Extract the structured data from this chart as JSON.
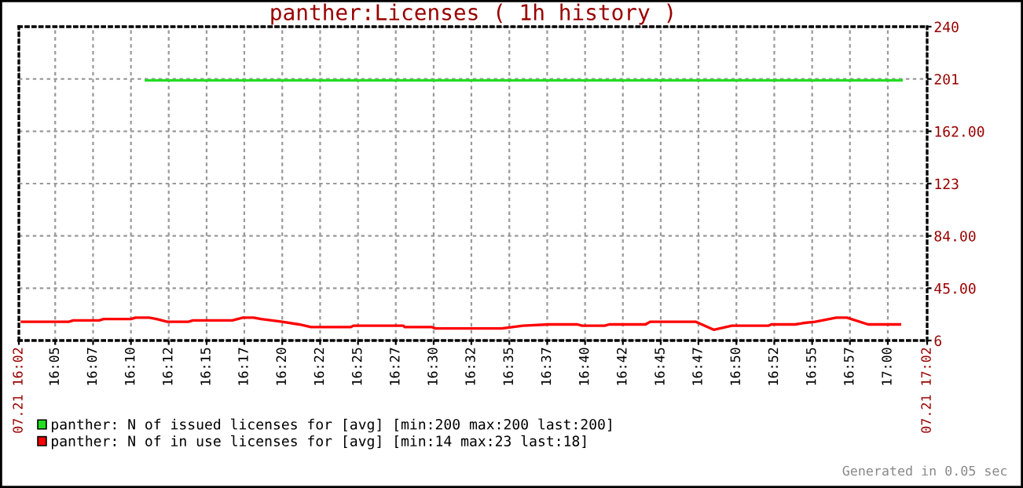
{
  "chart_data": {
    "type": "line",
    "title": "panther:Licenses ( 1h history )",
    "xlim": [
      16.0433,
      17.0433
    ],
    "ylim": [
      6,
      240
    ],
    "xticks": [
      {
        "value": 16.0433,
        "label": "07.21 16:02"
      },
      {
        "value": 16.0833,
        "label": "16:05"
      },
      {
        "value": 16.125,
        "label": "16:07"
      },
      {
        "value": 16.1667,
        "label": "16:10"
      },
      {
        "value": 16.2083,
        "label": "16:12"
      },
      {
        "value": 16.25,
        "label": "16:15"
      },
      {
        "value": 16.2915,
        "label": "16:17"
      },
      {
        "value": 16.3333,
        "label": "16:20"
      },
      {
        "value": 16.375,
        "label": "16:22"
      },
      {
        "value": 16.4167,
        "label": "16:25"
      },
      {
        "value": 16.4583,
        "label": "16:27"
      },
      {
        "value": 16.5,
        "label": "16:30"
      },
      {
        "value": 16.5415,
        "label": "16:32"
      },
      {
        "value": 16.5833,
        "label": "16:35"
      },
      {
        "value": 16.625,
        "label": "16:37"
      },
      {
        "value": 16.6667,
        "label": "16:40"
      },
      {
        "value": 16.7083,
        "label": "16:42"
      },
      {
        "value": 16.75,
        "label": "16:45"
      },
      {
        "value": 16.7915,
        "label": "16:47"
      },
      {
        "value": 16.8333,
        "label": "16:50"
      },
      {
        "value": 16.875,
        "label": "16:52"
      },
      {
        "value": 16.9167,
        "label": "16:55"
      },
      {
        "value": 16.9583,
        "label": "16:57"
      },
      {
        "value": 17.0,
        "label": "17:00"
      },
      {
        "value": 17.0433,
        "label": "07.21 17:02"
      }
    ],
    "yticks": [
      6,
      {
        "value": 45,
        "label": "45.00"
      },
      {
        "value": 84,
        "label": "84.00"
      },
      123,
      {
        "value": 162,
        "label": "162.00"
      },
      201,
      240
    ],
    "grid": true,
    "legend": "bottom",
    "marker": "none",
    "line_style": "solid",
    "series": [
      {
        "name": "panther: N of issued licenses for [avg] [min:200 max:200 last:200]",
        "color": "#22dd22",
        "x": [
          16.1833,
          17.015
        ],
        "values": [
          200,
          200
        ]
      },
      {
        "name": "panther: N of in use licenses for [avg] [min:14 max:23 last:18]",
        "color": "#ff0000",
        "x": [
          16.0467,
          16.0983,
          16.1033,
          16.1317,
          16.1367,
          16.1667,
          16.1717,
          16.1867,
          16.195,
          16.2067,
          16.23,
          16.235,
          16.2783,
          16.29,
          16.3017,
          16.31,
          16.3217,
          16.3333,
          16.3517,
          16.365,
          16.4083,
          16.4117,
          16.4667,
          16.4683,
          16.4983,
          16.5017,
          16.575,
          16.5983,
          16.6267,
          16.6583,
          16.6633,
          16.6883,
          16.6933,
          16.7333,
          16.7383,
          16.7883,
          16.8083,
          16.8283,
          16.8683,
          16.8717,
          16.8983,
          16.9067,
          16.92,
          16.9433,
          16.955,
          16.9783,
          17.0133
        ],
        "values": [
          20,
          20,
          21,
          21,
          22,
          22,
          23,
          23,
          22,
          20,
          20,
          21,
          21,
          23,
          23,
          22,
          21,
          20,
          18,
          16,
          16,
          17,
          17,
          16,
          16,
          15,
          15,
          17,
          18,
          18,
          17,
          17,
          18,
          18,
          20,
          20,
          14,
          17,
          17,
          18,
          18,
          19,
          20,
          23,
          23,
          18,
          18
        ]
      }
    ],
    "annotations": [
      "Generated in 0.05 sec"
    ]
  }
}
